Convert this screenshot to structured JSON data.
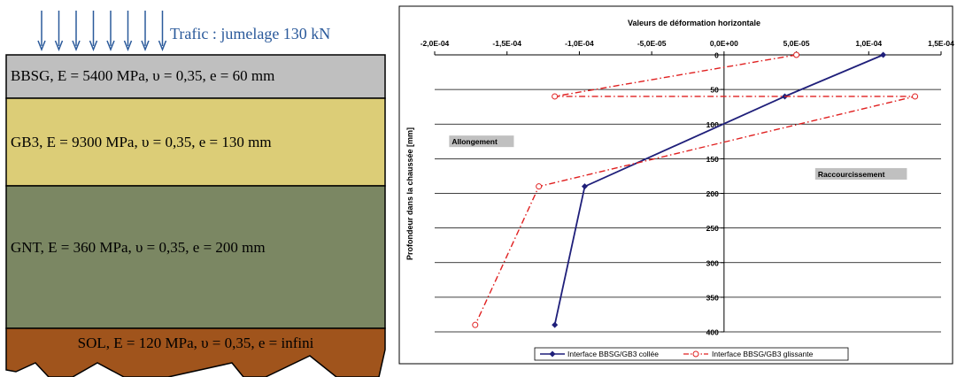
{
  "diagram": {
    "traffic_label": "Trafic : jumelage 130 kN",
    "layers": [
      {
        "label": "BBSG, E = 5400 MPa,  υ = 0,35, e = 60 mm",
        "color": "#bfbfbf"
      },
      {
        "label": "GB3, E = 9300 MPa,  υ = 0,35, e = 130 mm",
        "color": "#dccd77"
      },
      {
        "label": "GNT, E = 360 MPa,  υ = 0,35, e = 200 mm",
        "color": "#7b8763"
      },
      {
        "label": "SOL, E = 120 MPa,  υ = 0,35, e = infini",
        "color": "#a0541c"
      }
    ],
    "arrow_color": "#2b5a9b"
  },
  "chart_data": {
    "type": "line",
    "title": "Valeurs de déformation horizontale",
    "xlabel": "",
    "ylabel": "Profondeur dans la chaussée [mm]",
    "xlim": [
      -0.0002,
      0.00015
    ],
    "ylim": [
      0,
      400
    ],
    "y_inverted": true,
    "x_axis_position": "top",
    "x_ticks": [
      -0.0002,
      -0.00015,
      -0.0001,
      -5e-05,
      0,
      5e-05,
      0.0001,
      0.00015
    ],
    "x_tick_labels": [
      "-2,0E-04",
      "-1,5E-04",
      "-1,0E-04",
      "-5,0E-05",
      "0,0E+00",
      "5,0E-05",
      "1,0E-04",
      "1,5E-04"
    ],
    "y_ticks": [
      0,
      50,
      100,
      150,
      200,
      250,
      300,
      350,
      400
    ],
    "y_tick_labels": [
      "0",
      "50",
      "100",
      "150",
      "200",
      "250",
      "300",
      "350",
      "400"
    ],
    "grid": "horizontal",
    "legend_position": "bottom",
    "series": [
      {
        "name": "Interface BBSG/GB3 collée",
        "color": "#1f1f7a",
        "style": "solid",
        "marker": "diamond",
        "points": [
          [
            0.00011,
            0
          ],
          [
            4.2e-05,
            60
          ],
          [
            -9.63e-05,
            190
          ],
          [
            -0.000117,
            390
          ]
        ]
      },
      {
        "name": "Interface BBSG/GB3 glissante",
        "color": "#e02020",
        "style": "dashdot",
        "marker": "circle-open",
        "points": [
          [
            5e-05,
            0
          ],
          [
            -0.000117,
            60
          ],
          [
            0.000132,
            60
          ],
          [
            -0.000128,
            190
          ],
          [
            -0.000172,
            390
          ]
        ]
      }
    ],
    "annotations": [
      {
        "text": "Allongement",
        "x": -0.00019,
        "y": 128
      },
      {
        "text": "Raccourcissement",
        "x": 6.3e-05,
        "y": 175
      }
    ]
  }
}
